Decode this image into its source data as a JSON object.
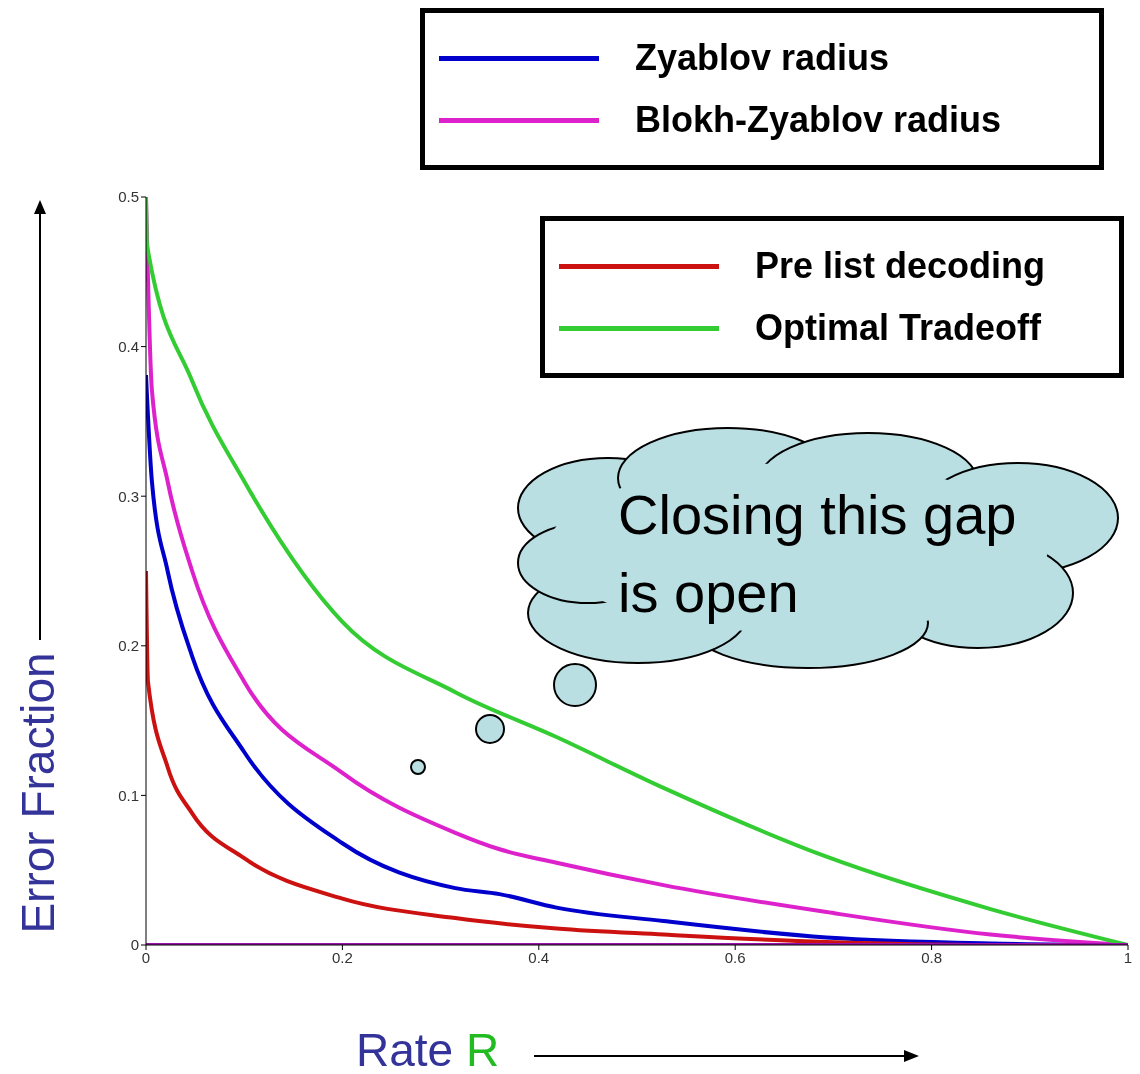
{
  "chart_data": {
    "type": "line",
    "xlabel": "Rate R",
    "ylabel": "Error Fraction",
    "xlim": [
      0,
      1
    ],
    "xticks": [
      0,
      0.2,
      0.4,
      0.6,
      0.8,
      1
    ],
    "ylim": [
      0,
      0.5
    ],
    "yticks": [
      0,
      0.1,
      0.2,
      0.3,
      0.4,
      0.5
    ],
    "legend": "top right",
    "marker": "none",
    "line_style": "solid",
    "annotations": [
      "Closing this gap is open"
    ],
    "series": [
      {
        "name": "Zyablov radius",
        "color": "#0000cc",
        "x": [
          0,
          0.006,
          0.022,
          0.047,
          0.1,
          0.2,
          0.315,
          0.36,
          0.418,
          0.527,
          0.693,
          0.86,
          1
        ],
        "values": [
          0.381,
          0.31,
          0.25,
          0.193,
          0.129,
          0.068,
          0.038,
          0.034,
          0.025,
          0.016,
          0.005,
          0.001,
          0
        ]
      },
      {
        "name": "Blokh-Zyablov radius",
        "color": "#dd22cc",
        "x": [
          0,
          0.006,
          0.022,
          0.047,
          0.1,
          0.2,
          0.315,
          0.36,
          0.418,
          0.527,
          0.693,
          0.86,
          1
        ],
        "values": [
          0.5,
          0.371,
          0.31,
          0.25,
          0.176,
          0.115,
          0.075,
          0.064,
          0.055,
          0.04,
          0.022,
          0.007,
          0
        ]
      },
      {
        "name": "Pre list decoding",
        "color": "#cc1111",
        "x": [
          0,
          0.002,
          0.022,
          0.047,
          0.1,
          0.2,
          0.315,
          0.418,
          0.527,
          0.693,
          0.86,
          1
        ],
        "values": [
          0.25,
          0.176,
          0.119,
          0.088,
          0.058,
          0.031,
          0.018,
          0.011,
          0.007,
          0.002,
          0,
          0
        ]
      },
      {
        "name": "Optimal Tradeoff",
        "color": "#33cc33",
        "x": [
          0,
          0.001,
          0.047,
          0.1,
          0.2,
          0.315,
          0.418,
          0.527,
          0.693,
          0.86,
          1
        ],
        "values": [
          0.5,
          0.468,
          0.377,
          0.31,
          0.216,
          0.169,
          0.139,
          0.105,
          0.059,
          0.024,
          0
        ]
      },
      {
        "color": "#9911aa",
        "x": [
          0,
          1
        ],
        "values": [
          0,
          0
        ]
      }
    ]
  }
}
